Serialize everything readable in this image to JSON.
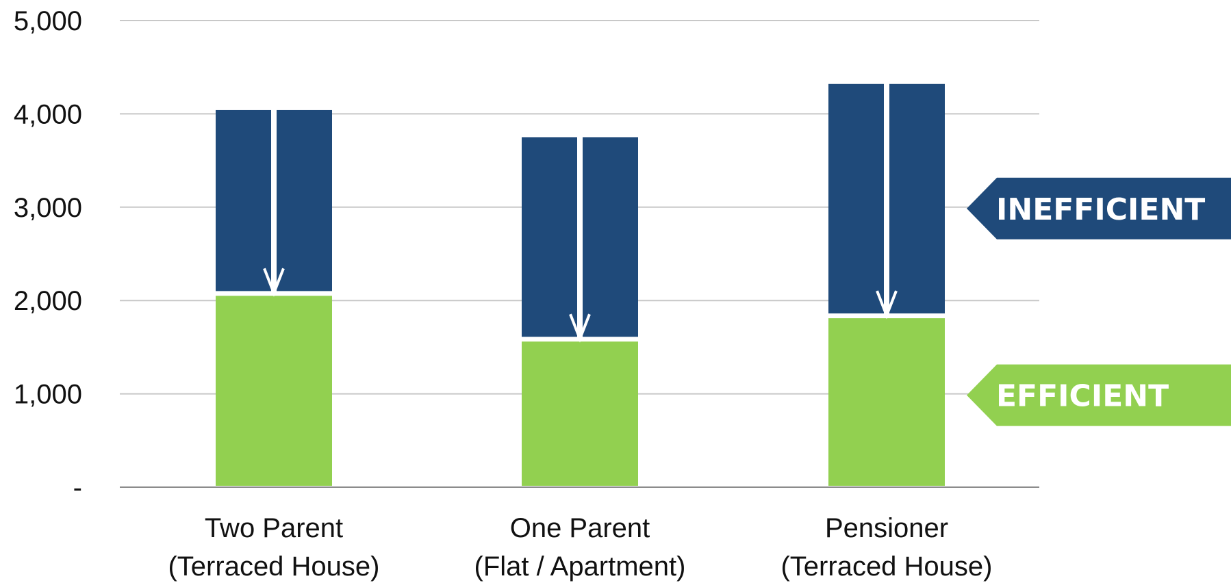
{
  "chart_data": {
    "type": "bar",
    "stacked": true,
    "categories": [
      [
        "Two Parent",
        "(Terraced House)"
      ],
      [
        "One Parent",
        "(Flat / Apartment)"
      ],
      [
        "Pensioner",
        "(Terraced House)"
      ]
    ],
    "series": [
      {
        "name": "EFFICIENT",
        "color": "#92d050",
        "values": [
          2050,
          1560,
          1810
        ]
      },
      {
        "name": "INEFFICIENT",
        "color": "#1f4a7a",
        "values": [
          1990,
          2190,
          2510
        ]
      }
    ],
    "inefficient_totals": [
      4040,
      3750,
      4320
    ],
    "ylim": [
      0,
      5000
    ],
    "yticks": [
      {
        "value": 0,
        "label": "-"
      },
      {
        "value": 1000,
        "label": "1,000"
      },
      {
        "value": 2000,
        "label": "2,000"
      },
      {
        "value": 3000,
        "label": "3,000"
      },
      {
        "value": 4000,
        "label": "4,000"
      },
      {
        "value": 5000,
        "label": "5,000"
      }
    ],
    "grid": true,
    "annotations": {
      "arrows": "down arrow in each bar from inefficient total to efficient level",
      "tags": [
        {
          "text": "INEFFICIENT",
          "value": 3000,
          "color": "#1f4a7a"
        },
        {
          "text": "EFFICIENT",
          "value": 1000,
          "color": "#92d050"
        }
      ]
    }
  }
}
